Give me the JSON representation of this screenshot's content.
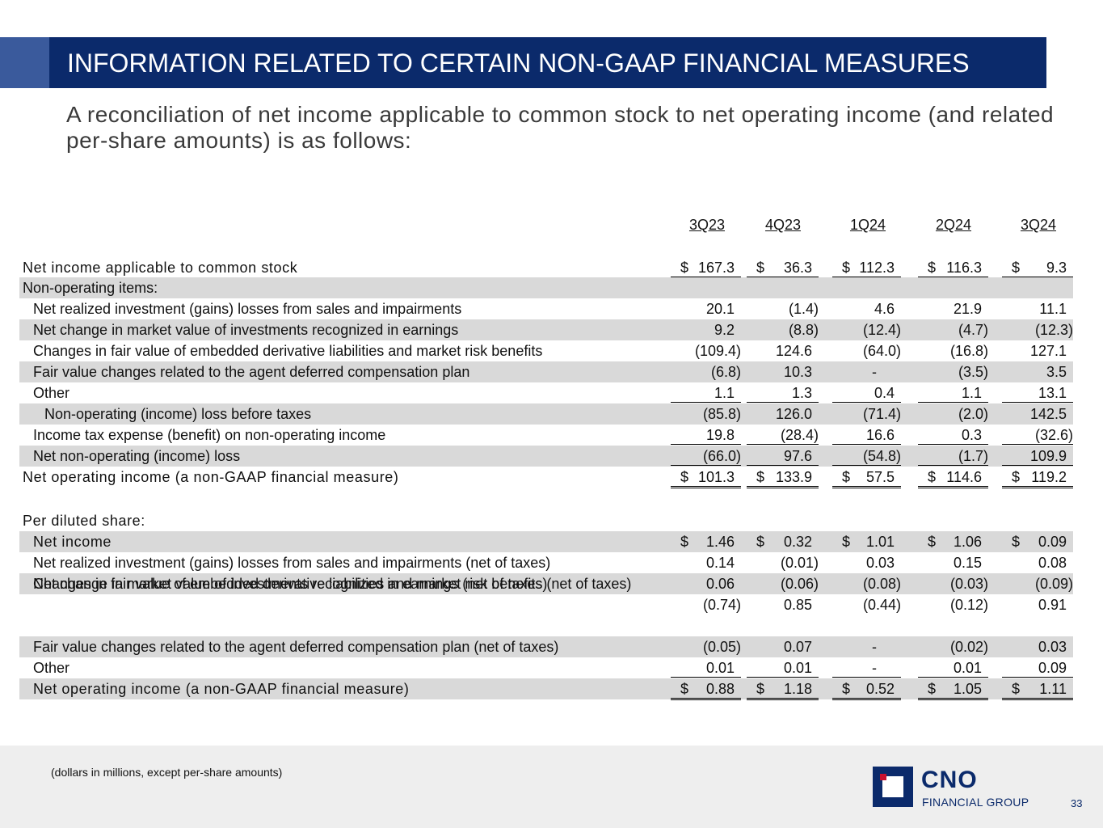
{
  "title": "INFORMATION RELATED TO CERTAIN NON-GAAP FINANCIAL MEASURES",
  "subtitle": "A reconciliation of net income applicable to common stock to net operating income (and related per-share amounts) is as follows:",
  "quarters": [
    "3Q23",
    "4Q23",
    "1Q24",
    "2Q24",
    "3Q24"
  ],
  "rows": [
    {
      "label": "Net income applicable to common stock",
      "v": [
        "167.3",
        "36.3",
        "112.3",
        "116.3",
        "9.3"
      ],
      "dollar": true
    },
    {
      "label": "Non-operating items:",
      "v": [
        "",
        "",
        "",
        "",
        ""
      ]
    },
    {
      "label": "Net realized investment (gains) losses from sales and impairments",
      "v": [
        "20.1",
        "(1.4)",
        "4.6",
        "21.9",
        "11.1"
      ]
    },
    {
      "label": "Net change in market value of investments recognized in earnings",
      "v": [
        "9.2",
        "(8.8)",
        "(12.4)",
        "(4.7)",
        "(12.3)"
      ]
    },
    {
      "label": "Changes in fair value of embedded derivative liabilities and market risk benefits",
      "v": [
        "(109.4)",
        "124.6",
        "(64.0)",
        "(16.8)",
        "127.1"
      ]
    },
    {
      "label": "Fair value changes related to the agent deferred compensation plan",
      "v": [
        "(6.8)",
        "10.3",
        "-",
        "(3.5)",
        "3.5"
      ]
    },
    {
      "label": "Other",
      "v": [
        "1.1",
        "1.3",
        "0.4",
        "1.1",
        "13.1"
      ]
    },
    {
      "label": "Non-operating (income) loss before taxes",
      "v": [
        "(85.8)",
        "126.0",
        "(71.4)",
        "(2.0)",
        "142.5"
      ]
    },
    {
      "label": "Income tax expense (benefit) on non-operating income",
      "v": [
        "19.8",
        "(28.4)",
        "16.6",
        "0.3",
        "(32.6)"
      ]
    },
    {
      "label": "Net non-operating (income) loss",
      "v": [
        "(66.0)",
        "97.6",
        "(54.8)",
        "(1.7)",
        "109.9"
      ]
    },
    {
      "label": "Net operating income (a non-GAAP financial measure)",
      "v": [
        "101.3",
        "133.9",
        "57.5",
        "114.6",
        "119.2"
      ],
      "dollar": true
    },
    {
      "label": "Per diluted share:",
      "v": [
        "",
        "",
        "",
        "",
        ""
      ]
    },
    {
      "label": "Net income",
      "v": [
        "1.46",
        "0.32",
        "1.01",
        "1.06",
        "0.09"
      ],
      "dollar": true
    },
    {
      "label": "Net realized investment (gains) losses from sales and impairments (net of taxes)",
      "v": [
        "0.14",
        "(0.01)",
        "0.03",
        "0.15",
        "0.08"
      ]
    },
    {
      "label": "Net change in market value of investments recognized in earnings (net of taxes)",
      "v": [
        "0.06",
        "(0.06)",
        "(0.08)",
        "(0.03)",
        "(0.09)"
      ]
    },
    {
      "label": "Changes in fair value of embedded derivative liabilities and market risk benefits (net of taxes)",
      "v": [
        "(0.74)",
        "0.85",
        "(0.44)",
        "(0.12)",
        "0.91"
      ]
    },
    {
      "label": "Fair value changes related to the agent deferred compensation plan (net of taxes)",
      "v": [
        "(0.05)",
        "0.07",
        "-",
        "(0.02)",
        "0.03"
      ]
    },
    {
      "label": "Other",
      "v": [
        "0.01",
        "0.01",
        "-",
        "0.01",
        "0.09"
      ]
    },
    {
      "label": "Net operating income (a non-GAAP financial measure)",
      "v": [
        "0.88",
        "1.18",
        "0.52",
        "1.05",
        "1.11"
      ],
      "dollar": true
    }
  ],
  "dollar_sign": "$",
  "footnote": "(dollars in millions, except per-share amounts)",
  "logo": {
    "name": "CNO",
    "tagline": "FINANCIAL GROUP"
  },
  "page_number": "33",
  "colors": {
    "banner": "#0b2a6b",
    "accent": "#3a5a9c",
    "logo_red": "#c8102e",
    "stripe": "#d9d9d9"
  }
}
